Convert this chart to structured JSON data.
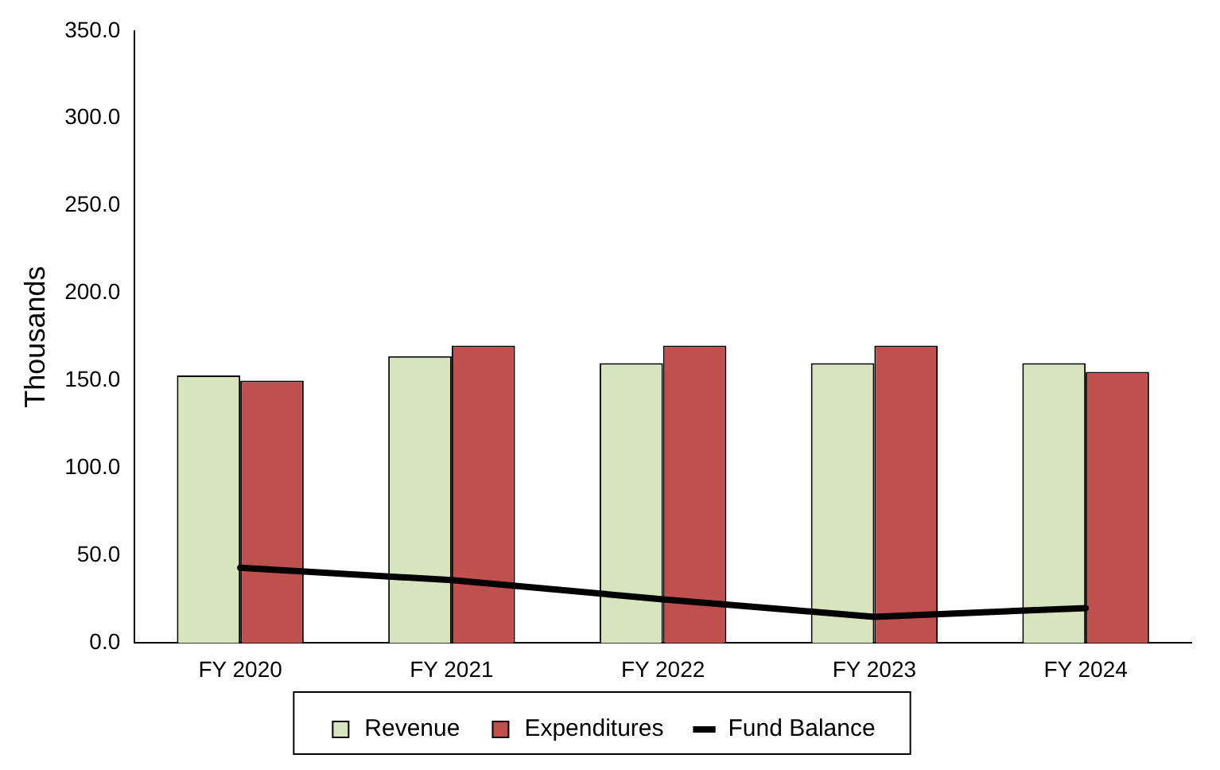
{
  "chart_data": {
    "type": "bar",
    "ylabel": "Thousands",
    "categories": [
      "FY 2020",
      "FY 2021",
      "FY 2022",
      "FY 2023",
      "FY 2024"
    ],
    "series": [
      {
        "name": "Revenue",
        "color": "#d7e4bd",
        "values": [
          153,
          164,
          160,
          160,
          160
        ]
      },
      {
        "name": "Expenditures",
        "color": "#c0504d",
        "values": [
          150,
          170,
          170,
          170,
          155
        ]
      },
      {
        "name": "Fund Balance",
        "type": "line",
        "color": "#000000",
        "values": [
          43,
          36,
          25,
          15,
          20
        ]
      }
    ],
    "ylim": [
      0,
      350
    ],
    "yticks": [
      {
        "value": 0,
        "label": "0.0"
      },
      {
        "value": 50,
        "label": "50.0"
      },
      {
        "value": 100,
        "label": "100.0"
      },
      {
        "value": 150,
        "label": "150.0"
      },
      {
        "value": 200,
        "label": "200.0"
      },
      {
        "value": 250,
        "label": "250.0"
      },
      {
        "value": 300,
        "label": "300.0"
      },
      {
        "value": 350,
        "label": "350.0"
      }
    ],
    "grid": false,
    "legend": "bottom",
    "marker": "none"
  }
}
